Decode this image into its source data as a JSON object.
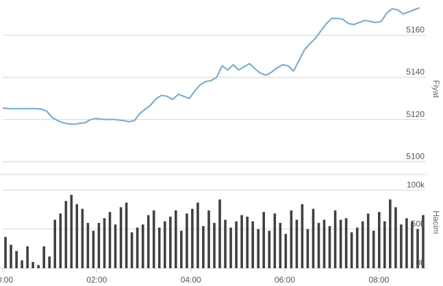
{
  "chart_data": [
    {
      "type": "line",
      "ylabel": "Fiyat",
      "ylim": [
        5094,
        5176
      ],
      "yticks": [
        5100,
        5120,
        5140,
        5160
      ],
      "line_color": "#6aa9dc",
      "grid": true,
      "x_label_time": [
        "00:00",
        "02:00",
        "04:00",
        "06:00",
        "08:00"
      ],
      "series": [
        {
          "x": [
            "00:00",
            "00:07",
            "00:14",
            "00:21",
            "00:28",
            "00:35",
            "00:42",
            "00:49",
            "00:56",
            "01:03",
            "01:10",
            "01:17",
            "01:24",
            "01:31",
            "01:38",
            "01:45",
            "01:52",
            "01:59",
            "02:06",
            "02:13",
            "02:20",
            "02:27",
            "02:34",
            "02:41",
            "02:48",
            "02:55",
            "03:02",
            "03:09",
            "03:16",
            "03:23",
            "03:30",
            "03:37",
            "03:44",
            "03:51",
            "03:58",
            "04:05",
            "04:12",
            "04:19",
            "04:26",
            "04:33",
            "04:40",
            "04:47",
            "04:54",
            "05:01",
            "05:08",
            "05:15",
            "05:22",
            "05:29",
            "05:36",
            "05:43",
            "05:50",
            "05:57",
            "06:04",
            "06:11",
            "06:18",
            "06:25",
            "06:32",
            "06:39",
            "06:46",
            "06:53",
            "07:00",
            "07:07",
            "07:14",
            "07:21",
            "07:28",
            "07:35",
            "07:42",
            "07:49",
            "07:56",
            "08:03",
            "08:10",
            "08:17",
            "08:24",
            "08:31",
            "08:38",
            "08:45",
            "08:52"
          ],
          "values": [
            5125.5,
            5125.2,
            5125.2,
            5125.2,
            5125.2,
            5125.2,
            5125.2,
            5125.0,
            5124.0,
            5121.0,
            5119.5,
            5118.5,
            5118.0,
            5117.8,
            5118.2,
            5118.5,
            5120.0,
            5120.5,
            5120.2,
            5120.0,
            5120.2,
            5119.8,
            5119.5,
            5119.0,
            5119.5,
            5123.0,
            5125.0,
            5127.0,
            5130.0,
            5131.5,
            5131.0,
            5129.5,
            5132.0,
            5131.0,
            5130.0,
            5133.5,
            5136.5,
            5138.0,
            5138.5,
            5140.0,
            5145.5,
            5143.5,
            5146.0,
            5143.5,
            5145.0,
            5146.5,
            5144.0,
            5142.0,
            5141.0,
            5142.5,
            5144.5,
            5146.0,
            5145.5,
            5143.0,
            5148.0,
            5153.0,
            5156.0,
            5158.5,
            5162.0,
            5165.5,
            5168.0,
            5168.0,
            5167.5,
            5165.5,
            5165.0,
            5166.0,
            5167.0,
            5166.5,
            5166.0,
            5166.5,
            5170.5,
            5172.5,
            5172.0,
            5170.0,
            5171.0,
            5172.0,
            5173.0
          ]
        }
      ]
    },
    {
      "type": "bar",
      "ylabel": "Hacim",
      "yticks_labels": [
        "0k",
        "50k",
        "100k"
      ],
      "ylim": [
        0,
        120
      ],
      "bar_color": "#404040",
      "grid": true,
      "values_k": [
        40,
        30,
        22,
        10,
        28,
        8,
        4,
        28,
        15,
        62,
        70,
        86,
        94,
        82,
        76,
        58,
        48,
        58,
        64,
        72,
        56,
        78,
        84,
        46,
        52,
        56,
        68,
        74,
        52,
        60,
        66,
        74,
        48,
        70,
        76,
        84,
        54,
        74,
        58,
        88,
        62,
        52,
        60,
        68,
        66,
        60,
        50,
        72,
        48,
        70,
        58,
        44,
        74,
        62,
        82,
        50,
        76,
        58,
        62,
        54,
        74,
        62,
        64,
        46,
        52,
        60,
        70,
        48,
        72,
        60,
        88,
        78,
        56,
        64,
        60,
        50,
        68
      ]
    }
  ]
}
